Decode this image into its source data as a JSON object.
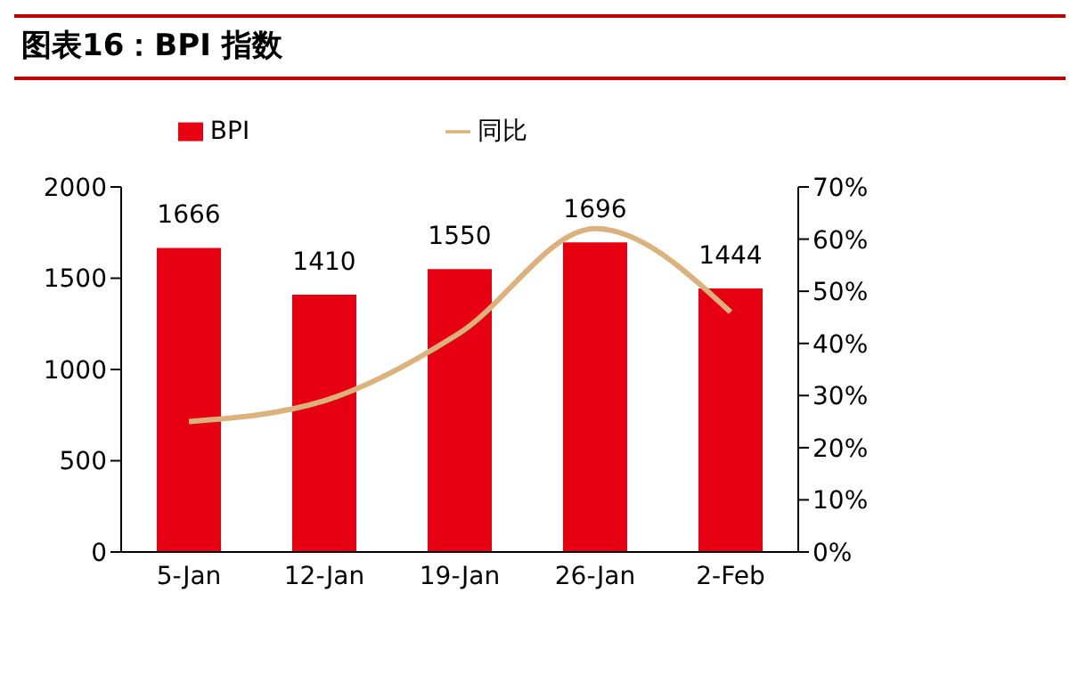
{
  "chart_data": {
    "type": "bar",
    "title": "图表16：BPI 指数",
    "categories": [
      "5-Jan",
      "12-Jan",
      "19-Jan",
      "26-Jan",
      "2-Feb"
    ],
    "series": [
      {
        "name": "BPI",
        "color": "#e60012",
        "values": [
          1666,
          1410,
          1550,
          1696,
          1444
        ],
        "value_labels": [
          "1666",
          "1410",
          "1550",
          "1696",
          "1444"
        ]
      },
      {
        "name": "同比",
        "type": "line",
        "axis": "y2",
        "color": "#dcb27c",
        "values": [
          25,
          29,
          42,
          62,
          46
        ]
      }
    ],
    "ylim": [
      0,
      2000
    ],
    "yticks": [
      0,
      500,
      1000,
      1500,
      2000
    ],
    "y2lim": [
      0,
      70
    ],
    "y2ticks": [
      {
        "value": 0,
        "label": "0%"
      },
      {
        "value": 10,
        "label": "10%"
      },
      {
        "value": 20,
        "label": "20%"
      },
      {
        "value": 30,
        "label": "30%"
      },
      {
        "value": 40,
        "label": "40%"
      },
      {
        "value": 50,
        "label": "50%"
      },
      {
        "value": 60,
        "label": "60%"
      },
      {
        "value": 70,
        "label": "70%"
      }
    ],
    "legend": "top",
    "grid": false,
    "marker": "none",
    "line_style": "solid"
  }
}
